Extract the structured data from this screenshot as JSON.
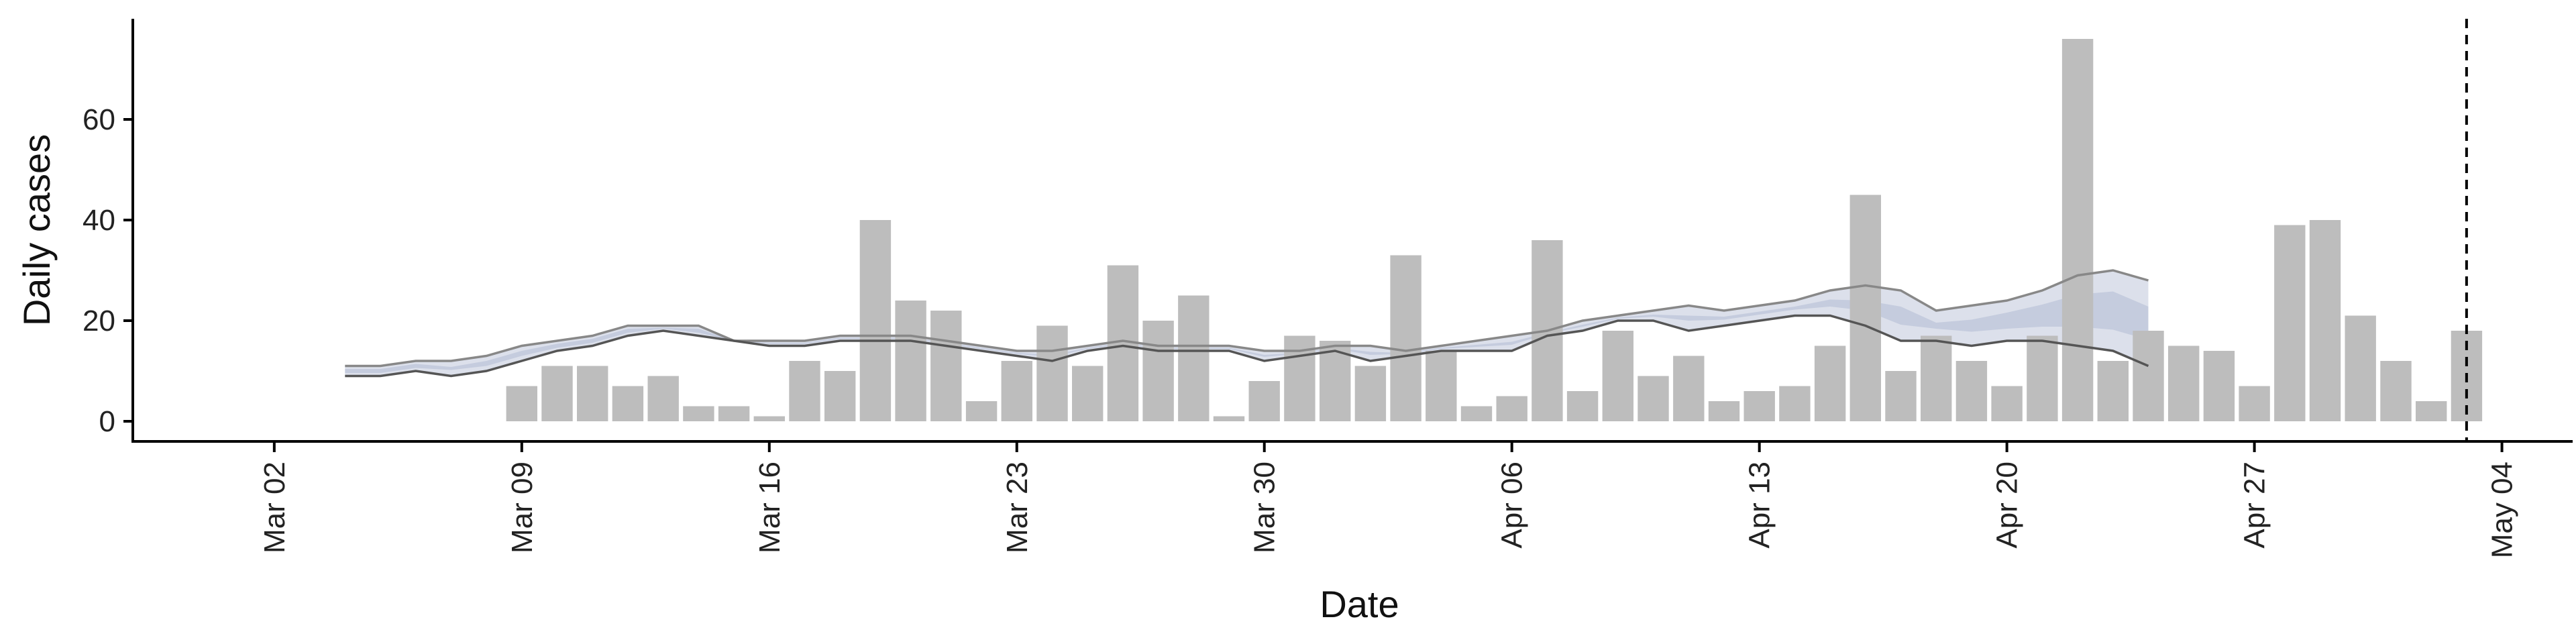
{
  "chart_data": {
    "type": "bar",
    "xlabel": "Date",
    "ylabel": "Daily cases",
    "x_ticks": [
      {
        "date": "2020-03-02",
        "label": "Mar 02"
      },
      {
        "date": "2020-03-09",
        "label": "Mar 09"
      },
      {
        "date": "2020-03-16",
        "label": "Mar 16"
      },
      {
        "date": "2020-03-23",
        "label": "Mar 23"
      },
      {
        "date": "2020-03-30",
        "label": "Mar 30"
      },
      {
        "date": "2020-04-06",
        "label": "Apr 06"
      },
      {
        "date": "2020-04-13",
        "label": "Apr 13"
      },
      {
        "date": "2020-04-20",
        "label": "Apr 20"
      },
      {
        "date": "2020-04-27",
        "label": "Apr 27"
      },
      {
        "date": "2020-05-04",
        "label": "May 04"
      }
    ],
    "xlim": [
      "2020-02-27",
      "2020-05-06"
    ],
    "y_ticks": [
      0,
      20,
      40,
      60
    ],
    "ylim": [
      -4,
      80
    ],
    "bars": {
      "color": "#bdbdbd",
      "x": [
        "2020-03-09",
        "2020-03-10",
        "2020-03-11",
        "2020-03-12",
        "2020-03-13",
        "2020-03-14",
        "2020-03-15",
        "2020-03-16",
        "2020-03-17",
        "2020-03-18",
        "2020-03-19",
        "2020-03-20",
        "2020-03-21",
        "2020-03-22",
        "2020-03-23",
        "2020-03-24",
        "2020-03-25",
        "2020-03-26",
        "2020-03-27",
        "2020-03-28",
        "2020-03-29",
        "2020-03-30",
        "2020-03-31",
        "2020-04-01",
        "2020-04-02",
        "2020-04-03",
        "2020-04-04",
        "2020-04-05",
        "2020-04-06",
        "2020-04-07",
        "2020-04-08",
        "2020-04-09",
        "2020-04-10",
        "2020-04-11",
        "2020-04-12",
        "2020-04-13",
        "2020-04-14",
        "2020-04-15",
        "2020-04-16",
        "2020-04-17",
        "2020-04-18",
        "2020-04-19",
        "2020-04-20",
        "2020-04-21",
        "2020-04-22",
        "2020-04-23",
        "2020-04-24",
        "2020-04-25",
        "2020-04-26",
        "2020-04-27",
        "2020-04-28",
        "2020-04-29",
        "2020-04-30",
        "2020-05-01",
        "2020-05-02",
        "2020-05-03"
      ],
      "values": [
        7,
        11,
        11,
        7,
        9,
        3,
        3,
        1,
        12,
        10,
        40,
        24,
        22,
        4,
        12,
        19,
        11,
        31,
        20,
        25,
        1,
        8,
        17,
        16,
        11,
        33,
        14,
        3,
        5,
        36,
        6,
        18,
        9,
        13,
        4,
        6,
        7,
        15,
        45,
        10,
        17,
        12,
        7,
        17,
        76,
        12,
        18,
        15,
        14,
        7,
        39,
        40,
        21,
        12,
        4,
        18
      ]
    },
    "lines": [
      {
        "color": "#888888",
        "x": [
          "2020-03-04",
          "2020-03-05",
          "2020-03-06",
          "2020-03-07",
          "2020-03-08",
          "2020-03-09",
          "2020-03-10",
          "2020-03-11",
          "2020-03-12",
          "2020-03-13",
          "2020-03-14",
          "2020-03-15",
          "2020-03-16",
          "2020-03-17",
          "2020-03-18",
          "2020-03-19",
          "2020-03-20",
          "2020-03-21",
          "2020-03-22",
          "2020-03-23",
          "2020-03-24",
          "2020-03-25",
          "2020-03-26",
          "2020-03-27",
          "2020-03-28",
          "2020-03-29",
          "2020-03-30",
          "2020-03-31",
          "2020-04-01",
          "2020-04-02",
          "2020-04-03",
          "2020-04-04",
          "2020-04-05",
          "2020-04-06",
          "2020-04-07",
          "2020-04-08",
          "2020-04-09",
          "2020-04-10",
          "2020-04-11",
          "2020-04-12",
          "2020-04-13",
          "2020-04-14",
          "2020-04-15",
          "2020-04-16",
          "2020-04-17",
          "2020-04-18",
          "2020-04-19",
          "2020-04-20",
          "2020-04-21",
          "2020-04-22",
          "2020-04-23",
          "2020-04-24"
        ],
        "values": [
          11,
          11,
          12,
          12,
          13,
          15,
          16,
          17,
          19,
          19,
          19,
          16,
          16,
          16,
          17,
          17,
          17,
          16,
          15,
          14,
          14,
          15,
          16,
          15,
          15,
          15,
          14,
          14,
          15,
          15,
          14,
          15,
          16,
          17,
          18,
          20,
          21,
          22,
          23,
          22,
          23,
          24,
          26,
          27,
          26,
          22,
          23,
          24,
          26,
          29,
          30,
          28
        ]
      },
      {
        "color": "#555555",
        "x": [
          "2020-03-04",
          "2020-03-05",
          "2020-03-06",
          "2020-03-07",
          "2020-03-08",
          "2020-03-09",
          "2020-03-10",
          "2020-03-11",
          "2020-03-12",
          "2020-03-13",
          "2020-03-14",
          "2020-03-15",
          "2020-03-16",
          "2020-03-17",
          "2020-03-18",
          "2020-03-19",
          "2020-03-20",
          "2020-03-21",
          "2020-03-22",
          "2020-03-23",
          "2020-03-24",
          "2020-03-25",
          "2020-03-26",
          "2020-03-27",
          "2020-03-28",
          "2020-03-29",
          "2020-03-30",
          "2020-03-31",
          "2020-04-01",
          "2020-04-02",
          "2020-04-03",
          "2020-04-04",
          "2020-04-05",
          "2020-04-06",
          "2020-04-07",
          "2020-04-08",
          "2020-04-09",
          "2020-04-10",
          "2020-04-11",
          "2020-04-12",
          "2020-04-13",
          "2020-04-14",
          "2020-04-15",
          "2020-04-16",
          "2020-04-17",
          "2020-04-18",
          "2020-04-19",
          "2020-04-20",
          "2020-04-21",
          "2020-04-22",
          "2020-04-23",
          "2020-04-24"
        ],
        "values": [
          9,
          9,
          10,
          9,
          10,
          12,
          14,
          15,
          17,
          18,
          17,
          16,
          15,
          15,
          16,
          16,
          16,
          15,
          14,
          13,
          12,
          14,
          15,
          14,
          14,
          14,
          12,
          13,
          14,
          12,
          13,
          14,
          14,
          14,
          17,
          18,
          20,
          20,
          18,
          19,
          20,
          21,
          21,
          19,
          16,
          16,
          15,
          16,
          16,
          15,
          14,
          11
        ]
      }
    ],
    "ribbons": [
      {
        "color": "#c5cbdd",
        "opacity": 0.6,
        "x": [
          "2020-03-04",
          "2020-03-05",
          "2020-03-06",
          "2020-03-07",
          "2020-03-08",
          "2020-03-09",
          "2020-03-10",
          "2020-03-11",
          "2020-03-12",
          "2020-03-13",
          "2020-03-14",
          "2020-03-15",
          "2020-03-16",
          "2020-03-17",
          "2020-03-18",
          "2020-03-19",
          "2020-03-20",
          "2020-03-21",
          "2020-03-22",
          "2020-03-23",
          "2020-03-24",
          "2020-03-25",
          "2020-03-26",
          "2020-03-27",
          "2020-03-28",
          "2020-03-29",
          "2020-03-30",
          "2020-03-31",
          "2020-04-01",
          "2020-04-02",
          "2020-04-03",
          "2020-04-04",
          "2020-04-05",
          "2020-04-06",
          "2020-04-07",
          "2020-04-08",
          "2020-04-09",
          "2020-04-10",
          "2020-04-11",
          "2020-04-12",
          "2020-04-13",
          "2020-04-14",
          "2020-04-15",
          "2020-04-16",
          "2020-04-17",
          "2020-04-18",
          "2020-04-19",
          "2020-04-20",
          "2020-04-21",
          "2020-04-22",
          "2020-04-23",
          "2020-04-24"
        ],
        "lower": [
          9,
          9,
          10,
          9,
          10,
          12,
          14,
          15,
          17,
          18,
          17,
          16,
          15,
          15,
          16,
          16,
          16,
          15,
          14,
          13,
          12,
          14,
          15,
          14,
          14,
          14,
          12,
          13,
          14,
          12,
          13,
          14,
          14,
          14,
          17,
          18,
          20,
          20,
          18,
          19,
          20,
          21,
          21,
          19,
          16,
          16,
          15,
          16,
          16,
          15,
          14,
          11
        ],
        "upper": [
          11,
          11,
          12,
          12,
          13,
          15,
          16,
          17,
          19,
          19,
          19,
          16,
          16,
          16,
          17,
          17,
          17,
          16,
          15,
          14,
          14,
          15,
          16,
          15,
          15,
          15,
          14,
          14,
          15,
          15,
          14,
          15,
          16,
          17,
          18,
          20,
          21,
          22,
          23,
          22,
          23,
          24,
          26,
          27,
          26,
          22,
          23,
          24,
          26,
          29,
          30,
          28
        ]
      },
      {
        "color": "#a9b3cf",
        "opacity": 0.45,
        "x": [
          "2020-03-04",
          "2020-03-05",
          "2020-03-06",
          "2020-03-07",
          "2020-03-08",
          "2020-03-09",
          "2020-03-10",
          "2020-03-11",
          "2020-03-12",
          "2020-03-13",
          "2020-03-14",
          "2020-03-15",
          "2020-03-16",
          "2020-03-17",
          "2020-03-18",
          "2020-03-19",
          "2020-03-20",
          "2020-03-21",
          "2020-03-22",
          "2020-03-23",
          "2020-03-24",
          "2020-03-25",
          "2020-03-26",
          "2020-03-27",
          "2020-03-28",
          "2020-03-29",
          "2020-03-30",
          "2020-03-31",
          "2020-04-01",
          "2020-04-02",
          "2020-04-03",
          "2020-04-04",
          "2020-04-05",
          "2020-04-06",
          "2020-04-07",
          "2020-04-08",
          "2020-04-09",
          "2020-04-10",
          "2020-04-11",
          "2020-04-12",
          "2020-04-13",
          "2020-04-14",
          "2020-04-15",
          "2020-04-16",
          "2020-04-17",
          "2020-04-18",
          "2020-04-19",
          "2020-04-20",
          "2020-04-21",
          "2020-04-22",
          "2020-04-23",
          "2020-04-24"
        ],
        "lower": [
          9.6,
          9.6,
          10.6,
          10.2,
          11,
          13,
          14.6,
          15.6,
          17.6,
          18.4,
          17.6,
          16,
          15.4,
          15.4,
          16.4,
          16.4,
          16.4,
          15.4,
          14.4,
          13.4,
          12.8,
          14.4,
          15.4,
          14.4,
          14.4,
          14.4,
          12.8,
          13.4,
          14.4,
          13.2,
          13.4,
          14.4,
          14.8,
          15.2,
          17.4,
          18.8,
          20.4,
          20.8,
          20,
          20.2,
          21.2,
          22.2,
          22.8,
          22,
          19.2,
          18.4,
          17.8,
          18.4,
          18.8,
          18.8,
          18.2,
          16.2
        ],
        "upper": [
          10.4,
          10.4,
          11.4,
          10.8,
          12,
          14,
          15.4,
          16.4,
          18.4,
          18.6,
          18.4,
          16,
          15.6,
          15.6,
          16.6,
          16.6,
          16.6,
          15.6,
          14.6,
          13.6,
          13.2,
          14.6,
          15.6,
          14.6,
          14.6,
          14.6,
          13.2,
          13.6,
          14.6,
          13.8,
          13.6,
          14.6,
          15.2,
          15.8,
          17.6,
          19.2,
          20.6,
          21.2,
          21,
          20.8,
          21.8,
          22.8,
          24.2,
          24,
          22.8,
          19.6,
          20.2,
          21.6,
          23.2,
          25.2,
          25.8,
          22.8
        ]
      }
    ],
    "vline": {
      "x": "2020-05-03",
      "style": "dashed",
      "color": "#000000"
    },
    "grid": false,
    "legend": "none"
  }
}
